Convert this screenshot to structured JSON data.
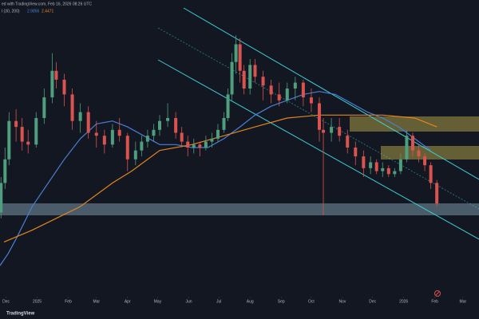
{
  "chart_data": {
    "type": "candlestick",
    "title": "ed with TradingView.com, Feb 16, 2026 08:26 UTC",
    "indicator": "l (30, 200)",
    "indicator_values": [
      "2.9856",
      "2.4471"
    ],
    "brand": "TradingView",
    "up_color": "#4f9e7e",
    "down_color": "#d9534f",
    "xlim": [
      -6,
      471
    ],
    "ylim": [
      0,
      100
    ],
    "xticks": [
      {
        "value": 0,
        "label": "Dec"
      },
      {
        "value": 31,
        "label": "2025"
      },
      {
        "value": 62,
        "label": "Feb"
      },
      {
        "value": 90,
        "label": "Mar"
      },
      {
        "value": 121,
        "label": "Apr"
      },
      {
        "value": 151,
        "label": "May"
      },
      {
        "value": 182,
        "label": "Jun"
      },
      {
        "value": 212,
        "label": "Jul"
      },
      {
        "value": 243,
        "label": "Aug"
      },
      {
        "value": 274,
        "label": "Sep"
      },
      {
        "value": 304,
        "label": "Oct"
      },
      {
        "value": 335,
        "label": "Nov"
      },
      {
        "value": 365,
        "label": "Dec"
      },
      {
        "value": 396,
        "label": "2026"
      },
      {
        "value": 427,
        "label": "Feb"
      },
      {
        "value": 455,
        "label": "Mar"
      }
    ],
    "candles": [
      [
        -5,
        28,
        40,
        26,
        38
      ],
      [
        -1,
        38,
        50,
        36,
        46
      ],
      [
        3,
        46,
        62,
        44,
        59
      ],
      [
        10,
        59,
        63,
        52,
        57
      ],
      [
        16,
        57,
        60,
        49,
        52
      ],
      [
        22,
        52,
        56,
        48,
        51
      ],
      [
        30,
        51,
        62,
        50,
        60
      ],
      [
        38,
        60,
        70,
        58,
        67
      ],
      [
        46,
        67,
        82,
        65,
        76
      ],
      [
        50,
        76,
        79,
        70,
        73
      ],
      [
        58,
        73,
        75,
        64,
        68
      ],
      [
        66,
        68,
        70,
        56,
        59
      ],
      [
        74,
        59,
        65,
        55,
        62
      ],
      [
        82,
        62,
        64,
        53,
        55
      ],
      [
        90,
        55,
        59,
        50,
        54
      ],
      [
        98,
        54,
        56,
        48,
        51
      ],
      [
        106,
        51,
        58,
        50,
        56
      ],
      [
        113,
        56,
        60,
        52,
        54
      ],
      [
        121,
        54,
        55,
        42,
        46
      ],
      [
        129,
        46,
        52,
        44,
        49
      ],
      [
        135,
        49,
        54,
        47,
        52
      ],
      [
        141,
        52,
        56,
        50,
        54
      ],
      [
        147,
        54,
        58,
        52,
        56
      ],
      [
        153,
        56,
        61,
        54,
        59
      ],
      [
        161,
        59,
        65,
        57,
        60
      ],
      [
        169,
        60,
        62,
        53,
        55
      ],
      [
        175,
        55,
        57,
        50,
        52
      ],
      [
        181,
        52,
        54,
        47,
        50
      ],
      [
        187,
        50,
        53,
        48,
        51
      ],
      [
        193,
        51,
        52,
        47,
        50
      ],
      [
        199,
        50,
        54,
        49,
        52
      ],
      [
        205,
        52,
        55,
        50,
        53
      ],
      [
        211,
        53,
        58,
        52,
        56
      ],
      [
        217,
        56,
        62,
        55,
        60
      ],
      [
        221,
        60,
        70,
        59,
        68
      ],
      [
        225,
        68,
        82,
        66,
        79
      ],
      [
        229,
        79,
        88,
        75,
        85
      ],
      [
        233,
        85,
        87,
        72,
        76
      ],
      [
        237,
        76,
        78,
        68,
        70
      ],
      [
        243,
        70,
        80,
        68,
        78
      ],
      [
        248,
        78,
        80,
        72,
        74
      ],
      [
        256,
        74,
        76,
        66,
        71
      ],
      [
        264,
        71,
        73,
        65,
        68
      ],
      [
        272,
        68,
        72,
        64,
        66
      ],
      [
        280,
        66,
        72,
        65,
        70
      ],
      [
        288,
        70,
        74,
        66,
        72
      ],
      [
        296,
        72,
        73,
        64,
        67
      ],
      [
        304,
        67,
        70,
        62,
        65
      ],
      [
        312,
        65,
        67,
        52,
        56
      ],
      [
        316,
        56,
        60,
        27,
        55
      ],
      [
        324,
        55,
        60,
        52,
        57
      ],
      [
        332,
        57,
        60,
        52,
        54
      ],
      [
        340,
        54,
        56,
        48,
        50
      ],
      [
        348,
        50,
        52,
        44,
        47
      ],
      [
        356,
        47,
        49,
        40,
        43
      ],
      [
        363,
        43,
        47,
        41,
        45
      ],
      [
        369,
        45,
        46,
        41,
        42
      ],
      [
        375,
        42,
        45,
        40,
        43
      ],
      [
        381,
        43,
        44,
        40,
        41
      ],
      [
        387,
        41,
        43,
        40,
        42
      ],
      [
        393,
        42,
        48,
        41,
        46
      ],
      [
        399,
        46,
        56,
        45,
        54
      ],
      [
        405,
        54,
        55,
        47,
        49
      ],
      [
        411,
        49,
        51,
        45,
        47
      ],
      [
        417,
        47,
        48,
        42,
        44
      ],
      [
        423,
        44,
        45,
        36,
        38
      ],
      [
        429,
        38,
        39,
        30,
        31
      ]
    ],
    "overlays": [
      {
        "color": "#4a7fd4",
        "x": [
          -6,
          2,
          10,
          26,
          42,
          58,
          74,
          90,
          106,
          121,
          137,
          153,
          169,
          185,
          201,
          217,
          233,
          248,
          264,
          280,
          296,
          312,
          328,
          344,
          360,
          375,
          391,
          407,
          423
        ],
        "values": [
          10,
          14,
          19,
          30,
          38,
          46,
          53,
          58,
          59,
          57,
          54,
          51,
          51,
          50,
          50,
          53,
          57,
          61,
          64,
          66,
          68,
          69,
          68,
          65,
          62,
          60,
          57,
          53,
          49
        ]
      },
      {
        "color": "#e3851f",
        "x": [
          -2,
          26,
          50,
          74,
          106,
          125,
          153,
          185,
          217,
          248,
          280,
          312,
          344,
          375,
          407,
          429
        ],
        "values": [
          18,
          22,
          26,
          30,
          38,
          42,
          49,
          51,
          54,
          57,
          60,
          61,
          61,
          61,
          60,
          57
        ]
      }
    ]
  }
}
